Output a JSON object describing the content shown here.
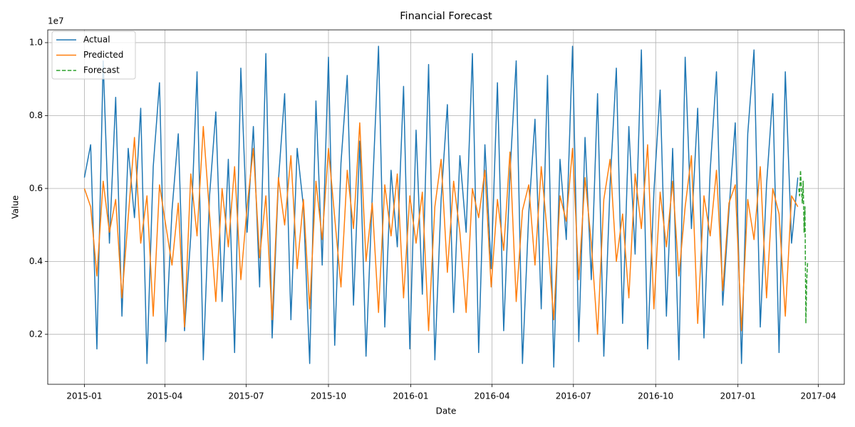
{
  "chart_data": {
    "type": "line",
    "title": "Financial Forecast",
    "xlabel": "Date",
    "ylabel": "Value",
    "y_offset_label": "1e7",
    "x": [
      "2015-01-01",
      "2015-01-08",
      "2015-01-15",
      "2015-01-22",
      "2015-01-29",
      "2015-02-05",
      "2015-02-12",
      "2015-02-19",
      "2015-02-26",
      "2015-03-05",
      "2015-03-12",
      "2015-03-19",
      "2015-03-26",
      "2015-04-02",
      "2015-04-09",
      "2015-04-16",
      "2015-04-23",
      "2015-04-30",
      "2015-05-07",
      "2015-05-14",
      "2015-05-21",
      "2015-05-28",
      "2015-06-04",
      "2015-06-11",
      "2015-06-18",
      "2015-06-25",
      "2015-07-02",
      "2015-07-09",
      "2015-07-16",
      "2015-07-23",
      "2015-07-30",
      "2015-08-06",
      "2015-08-13",
      "2015-08-20",
      "2015-08-27",
      "2015-09-03",
      "2015-09-10",
      "2015-09-17",
      "2015-09-24",
      "2015-10-01",
      "2015-10-08",
      "2015-10-15",
      "2015-10-22",
      "2015-10-29",
      "2015-11-05",
      "2015-11-12",
      "2015-11-19",
      "2015-11-26",
      "2015-12-03",
      "2015-12-10",
      "2015-12-17",
      "2015-12-24",
      "2015-12-31",
      "2016-01-07",
      "2016-01-14",
      "2016-01-21",
      "2016-01-28",
      "2016-02-04",
      "2016-02-11",
      "2016-02-18",
      "2016-02-25",
      "2016-03-03",
      "2016-03-10",
      "2016-03-17",
      "2016-03-24",
      "2016-03-31",
      "2016-04-07",
      "2016-04-14",
      "2016-04-21",
      "2016-04-28",
      "2016-05-05",
      "2016-05-12",
      "2016-05-19",
      "2016-05-26",
      "2016-06-02",
      "2016-06-09",
      "2016-06-16",
      "2016-06-23",
      "2016-06-30",
      "2016-07-07",
      "2016-07-14",
      "2016-07-21",
      "2016-07-28",
      "2016-08-04",
      "2016-08-11",
      "2016-08-18",
      "2016-08-25",
      "2016-09-01",
      "2016-09-08",
      "2016-09-15",
      "2016-09-22",
      "2016-09-29",
      "2016-10-06",
      "2016-10-13",
      "2016-10-20",
      "2016-10-27",
      "2016-11-03",
      "2016-11-10",
      "2016-11-17",
      "2016-11-24",
      "2016-12-01",
      "2016-12-08",
      "2016-12-15",
      "2016-12-22",
      "2016-12-29",
      "2017-01-05",
      "2017-01-12",
      "2017-01-19",
      "2017-01-26",
      "2017-02-02",
      "2017-02-09",
      "2017-02-16",
      "2017-02-23",
      "2017-03-02",
      "2017-03-09"
    ],
    "series": [
      {
        "name": "Actual",
        "color": "#1f77b4",
        "values": [
          0.63,
          0.72,
          0.16,
          0.95,
          0.45,
          0.85,
          0.25,
          0.71,
          0.52,
          0.82,
          0.12,
          0.66,
          0.89,
          0.18,
          0.54,
          0.75,
          0.21,
          0.47,
          0.92,
          0.13,
          0.58,
          0.81,
          0.29,
          0.68,
          0.15,
          0.93,
          0.48,
          0.77,
          0.33,
          0.97,
          0.19,
          0.62,
          0.86,
          0.24,
          0.71,
          0.55,
          0.12,
          0.84,
          0.39,
          0.96,
          0.17,
          0.67,
          0.91,
          0.28,
          0.73,
          0.14,
          0.58,
          0.99,
          0.22,
          0.65,
          0.44,
          0.88,
          0.16,
          0.76,
          0.31,
          0.94,
          0.13,
          0.57,
          0.83,
          0.26,
          0.69,
          0.48,
          0.97,
          0.15,
          0.72,
          0.38,
          0.89,
          0.21,
          0.64,
          0.95,
          0.12,
          0.53,
          0.79,
          0.27,
          0.91,
          0.11,
          0.68,
          0.46,
          0.99,
          0.18,
          0.74,
          0.35,
          0.86,
          0.14,
          0.61,
          0.93,
          0.23,
          0.77,
          0.42,
          0.98,
          0.16,
          0.59,
          0.87,
          0.25,
          0.71,
          0.13,
          0.96,
          0.49,
          0.82,
          0.19,
          0.65,
          0.92,
          0.28,
          0.54,
          0.78,
          0.12,
          0.75,
          0.98,
          0.22,
          0.61,
          0.86,
          0.15,
          0.92,
          0.45,
          0.63
        ]
      },
      {
        "name": "Predicted",
        "color": "#ff7f0e",
        "values": [
          0.6,
          0.55,
          0.36,
          0.62,
          0.48,
          0.57,
          0.3,
          0.52,
          0.74,
          0.45,
          0.58,
          0.25,
          0.61,
          0.5,
          0.39,
          0.56,
          0.22,
          0.64,
          0.47,
          0.77,
          0.53,
          0.29,
          0.6,
          0.44,
          0.66,
          0.35,
          0.55,
          0.71,
          0.41,
          0.58,
          0.24,
          0.63,
          0.5,
          0.69,
          0.38,
          0.57,
          0.27,
          0.62,
          0.46,
          0.71,
          0.52,
          0.33,
          0.65,
          0.49,
          0.78,
          0.4,
          0.56,
          0.26,
          0.61,
          0.47,
          0.64,
          0.3,
          0.58,
          0.45,
          0.59,
          0.21,
          0.55,
          0.68,
          0.37,
          0.62,
          0.48,
          0.26,
          0.6,
          0.52,
          0.65,
          0.33,
          0.57,
          0.43,
          0.7,
          0.29,
          0.54,
          0.61,
          0.39,
          0.66,
          0.47,
          0.24,
          0.58,
          0.51,
          0.71,
          0.35,
          0.63,
          0.45,
          0.2,
          0.57,
          0.68,
          0.4,
          0.53,
          0.3,
          0.64,
          0.49,
          0.72,
          0.27,
          0.59,
          0.44,
          0.62,
          0.36,
          0.55,
          0.69,
          0.23,
          0.58,
          0.47,
          0.65,
          0.32,
          0.56,
          0.61,
          0.21,
          0.57,
          0.46,
          0.66,
          0.3,
          0.6,
          0.53,
          0.25,
          0.58,
          0.55
        ]
      },
      {
        "name": "Forecast",
        "color": "#2ca02c",
        "dashed": true,
        "x": [
          "2017-03-10",
          "2017-03-11",
          "2017-03-12",
          "2017-03-13",
          "2017-03-14",
          "2017-03-15",
          "2017-03-16",
          "2017-03-17",
          "2017-03-18",
          "2017-03-19",
          "2017-03-20"
        ],
        "values": [
          0.6,
          0.58,
          0.65,
          0.6,
          0.56,
          0.62,
          0.48,
          0.55,
          0.23,
          0.35,
          0.4
        ]
      }
    ],
    "xlim": [
      "2014-11-21",
      "2017-04-30"
    ],
    "xticks": [
      "2015-01",
      "2015-04",
      "2015-07",
      "2015-10",
      "2016-01",
      "2016-04",
      "2016-07",
      "2016-10",
      "2017-01",
      "2017-04"
    ],
    "ylim": [
      0.063,
      1.035
    ],
    "yticks": [
      0.2,
      0.4,
      0.6,
      0.8,
      {
        "value": 1,
        "label": "1.0"
      }
    ],
    "grid": true,
    "legend": "upper left"
  }
}
